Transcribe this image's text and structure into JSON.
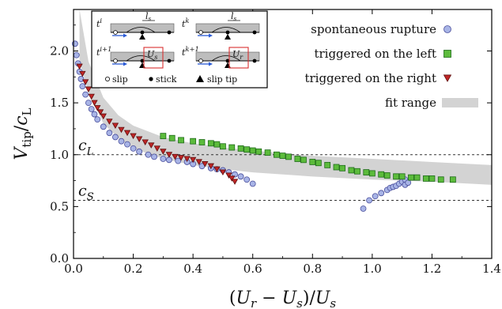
{
  "chart_data": {
    "type": "scatter",
    "title": "",
    "xlabel_main": "(U",
    "xlabel": "(U_r − U_s)/U_s",
    "ylabel": "V_tip/c_L",
    "xlim": [
      0,
      1.4
    ],
    "ylim": [
      0,
      2.4
    ],
    "x_ticks": [
      "0.0",
      "0.2",
      "0.4",
      "0.6",
      "0.8",
      "1.0",
      "1.2",
      "1.4"
    ],
    "y_ticks": [
      "0.0",
      "0.5",
      "1.0",
      "1.5",
      "2.0"
    ],
    "grid": false,
    "legend_position": "top-right",
    "reference_lines": [
      {
        "label": "c_L",
        "label_main": "c",
        "label_sub": "L",
        "y": 1.0
      },
      {
        "label": "c_S",
        "label_main": "c",
        "label_sub": "S",
        "y": 0.56
      }
    ],
    "fit_range": {
      "name": "fit range",
      "color": "#d3d3d3",
      "x": [
        0.02,
        0.05,
        0.1,
        0.15,
        0.2,
        0.3,
        0.4,
        0.5,
        0.6,
        0.8,
        1.0,
        1.2,
        1.4
      ],
      "upper": [
        2.4,
        1.9,
        1.55,
        1.38,
        1.28,
        1.17,
        1.11,
        1.07,
        1.04,
        0.99,
        0.96,
        0.93,
        0.9
      ],
      "lower": [
        1.9,
        1.6,
        1.3,
        1.16,
        1.06,
        0.96,
        0.9,
        0.86,
        0.83,
        0.79,
        0.76,
        0.74,
        0.71
      ]
    },
    "series": [
      {
        "name": "spontaneous rupture",
        "marker": "circle",
        "color": "#a8b4e6",
        "edge": "#4a4f9c",
        "points": [
          [
            0.005,
            2.07
          ],
          [
            0.01,
            1.96
          ],
          [
            0.015,
            1.88
          ],
          [
            0.02,
            1.8
          ],
          [
            0.025,
            1.73
          ],
          [
            0.03,
            1.66
          ],
          [
            0.04,
            1.58
          ],
          [
            0.05,
            1.5
          ],
          [
            0.06,
            1.44
          ],
          [
            0.07,
            1.39
          ],
          [
            0.08,
            1.34
          ],
          [
            0.1,
            1.27
          ],
          [
            0.12,
            1.21
          ],
          [
            0.14,
            1.17
          ],
          [
            0.16,
            1.13
          ],
          [
            0.18,
            1.1
          ],
          [
            0.2,
            1.06
          ],
          [
            0.22,
            1.03
          ],
          [
            0.25,
            1.0
          ],
          [
            0.27,
            0.98
          ],
          [
            0.3,
            0.96
          ],
          [
            0.32,
            0.95
          ],
          [
            0.35,
            0.94
          ],
          [
            0.38,
            0.93
          ],
          [
            0.4,
            0.91
          ],
          [
            0.43,
            0.89
          ],
          [
            0.46,
            0.87
          ],
          [
            0.48,
            0.86
          ],
          [
            0.5,
            0.85
          ],
          [
            0.52,
            0.83
          ],
          [
            0.54,
            0.81
          ],
          [
            0.56,
            0.79
          ],
          [
            0.58,
            0.76
          ],
          [
            0.6,
            0.72
          ],
          [
            0.97,
            0.48
          ],
          [
            0.99,
            0.56
          ],
          [
            1.01,
            0.6
          ],
          [
            1.03,
            0.63
          ],
          [
            1.05,
            0.66
          ],
          [
            1.06,
            0.68
          ],
          [
            1.07,
            0.69
          ],
          [
            1.08,
            0.7
          ],
          [
            1.09,
            0.72
          ],
          [
            1.1,
            0.74
          ],
          [
            1.11,
            0.76
          ],
          [
            1.11,
            0.71
          ],
          [
            1.12,
            0.73
          ]
        ]
      },
      {
        "name": "triggered on the left",
        "marker": "square",
        "color": "#5cbb3c",
        "edge": "#1f6b1a",
        "points": [
          [
            0.3,
            1.18
          ],
          [
            0.33,
            1.16
          ],
          [
            0.36,
            1.14
          ],
          [
            0.4,
            1.13
          ],
          [
            0.43,
            1.12
          ],
          [
            0.46,
            1.11
          ],
          [
            0.48,
            1.1
          ],
          [
            0.5,
            1.08
          ],
          [
            0.53,
            1.07
          ],
          [
            0.56,
            1.06
          ],
          [
            0.58,
            1.05
          ],
          [
            0.6,
            1.04
          ],
          [
            0.62,
            1.03
          ],
          [
            0.65,
            1.02
          ],
          [
            0.68,
            1.0
          ],
          [
            0.7,
            0.99
          ],
          [
            0.72,
            0.98
          ],
          [
            0.75,
            0.96
          ],
          [
            0.77,
            0.95
          ],
          [
            0.8,
            0.93
          ],
          [
            0.82,
            0.92
          ],
          [
            0.85,
            0.9
          ],
          [
            0.88,
            0.88
          ],
          [
            0.9,
            0.87
          ],
          [
            0.93,
            0.85
          ],
          [
            0.95,
            0.84
          ],
          [
            0.98,
            0.83
          ],
          [
            1.0,
            0.82
          ],
          [
            1.03,
            0.81
          ],
          [
            1.05,
            0.8
          ],
          [
            1.08,
            0.79
          ],
          [
            1.1,
            0.79
          ],
          [
            1.13,
            0.78
          ],
          [
            1.15,
            0.78
          ],
          [
            1.18,
            0.77
          ],
          [
            1.2,
            0.77
          ],
          [
            1.23,
            0.76
          ],
          [
            1.27,
            0.76
          ]
        ]
      },
      {
        "name": "triggered on the right",
        "marker": "triangle-down",
        "color": "#c02626",
        "edge": "#5e0f0f",
        "points": [
          [
            0.02,
            1.85
          ],
          [
            0.03,
            1.78
          ],
          [
            0.04,
            1.7
          ],
          [
            0.05,
            1.63
          ],
          [
            0.06,
            1.56
          ],
          [
            0.07,
            1.5
          ],
          [
            0.08,
            1.45
          ],
          [
            0.09,
            1.41
          ],
          [
            0.1,
            1.37
          ],
          [
            0.12,
            1.32
          ],
          [
            0.14,
            1.28
          ],
          [
            0.16,
            1.24
          ],
          [
            0.18,
            1.21
          ],
          [
            0.2,
            1.18
          ],
          [
            0.22,
            1.15
          ],
          [
            0.24,
            1.12
          ],
          [
            0.26,
            1.09
          ],
          [
            0.28,
            1.06
          ],
          [
            0.3,
            1.03
          ],
          [
            0.32,
            1.0
          ],
          [
            0.34,
            0.98
          ],
          [
            0.36,
            0.97
          ],
          [
            0.38,
            0.96
          ],
          [
            0.4,
            0.95
          ],
          [
            0.42,
            0.93
          ],
          [
            0.44,
            0.91
          ],
          [
            0.46,
            0.89
          ],
          [
            0.48,
            0.86
          ],
          [
            0.5,
            0.83
          ],
          [
            0.52,
            0.8
          ],
          [
            0.53,
            0.77
          ],
          [
            0.54,
            0.74
          ]
        ]
      }
    ],
    "inset": {
      "panels": [
        {
          "label_base": "t",
          "label_sup": "i"
        },
        {
          "label_base": "t",
          "label_sup": "k"
        },
        {
          "label_base": "t",
          "label_sup": "i+1",
          "box_label_base": "U",
          "box_label_sub": "s"
        },
        {
          "label_base": "t",
          "label_sup": "k+1",
          "box_label_base": "U",
          "box_label_sub": "r"
        }
      ],
      "step_label_base": "l",
      "step_label_sub": "s",
      "legend": {
        "slip": "slip",
        "stick": "stick",
        "slip_tip": "slip tip"
      }
    }
  }
}
